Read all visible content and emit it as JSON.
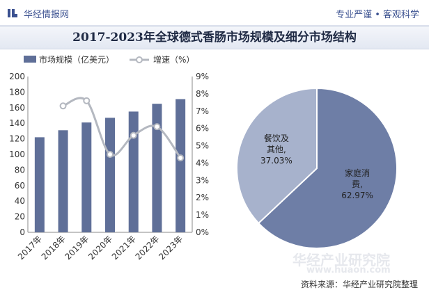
{
  "header": {
    "brand": "华经情报网",
    "slogan": "专业严谨 • 客观科学",
    "title": "2017-2023年全球德式香肠市场规模及细分市场结构"
  },
  "footer": {
    "source": "资料来源：华经产业研究院整理"
  },
  "watermark": {
    "name": "华经产业研究院",
    "url": "www.huaon.com"
  },
  "colors": {
    "bar": "#5f6f98",
    "line": "#b4b8c0",
    "pie_main": "#6e7ea6",
    "pie_other": "#a7b2cc",
    "title_bg": "#e3e8f2"
  },
  "chart_data": [
    {
      "type": "bar+line",
      "categories": [
        "2017年",
        "2018年",
        "2019年",
        "2020年",
        "2021年",
        "2022年",
        "2023年"
      ],
      "series": [
        {
          "name": "市场规模（亿美元）",
          "type": "bar",
          "axis": "left",
          "values": [
            122,
            131,
            141,
            147,
            155,
            165,
            171
          ]
        },
        {
          "name": "增速（%）",
          "type": "line",
          "axis": "right",
          "values": [
            null,
            7.3,
            7.6,
            4.5,
            5.6,
            6.1,
            4.3
          ]
        }
      ],
      "left_axis": {
        "min": 0,
        "max": 200,
        "ticks": [
          "0",
          "20",
          "40",
          "60",
          "80",
          "100",
          "120",
          "140",
          "160",
          "180",
          "200"
        ]
      },
      "right_axis": {
        "min": 0,
        "max": 9,
        "ticks": [
          "0%",
          "1%",
          "2%",
          "3%",
          "4%",
          "5%",
          "6%",
          "7%",
          "8%",
          "9%"
        ]
      },
      "legend_position": "top-left"
    },
    {
      "type": "pie",
      "slices": [
        {
          "name": "家庭消费",
          "value": 62.97,
          "label_lines": [
            "家庭消",
            "费,",
            "62.97%"
          ]
        },
        {
          "name": "餐饮及其他",
          "value": 37.03,
          "label_lines": [
            "餐饮及",
            "其他,",
            "37.03%"
          ]
        }
      ]
    }
  ]
}
